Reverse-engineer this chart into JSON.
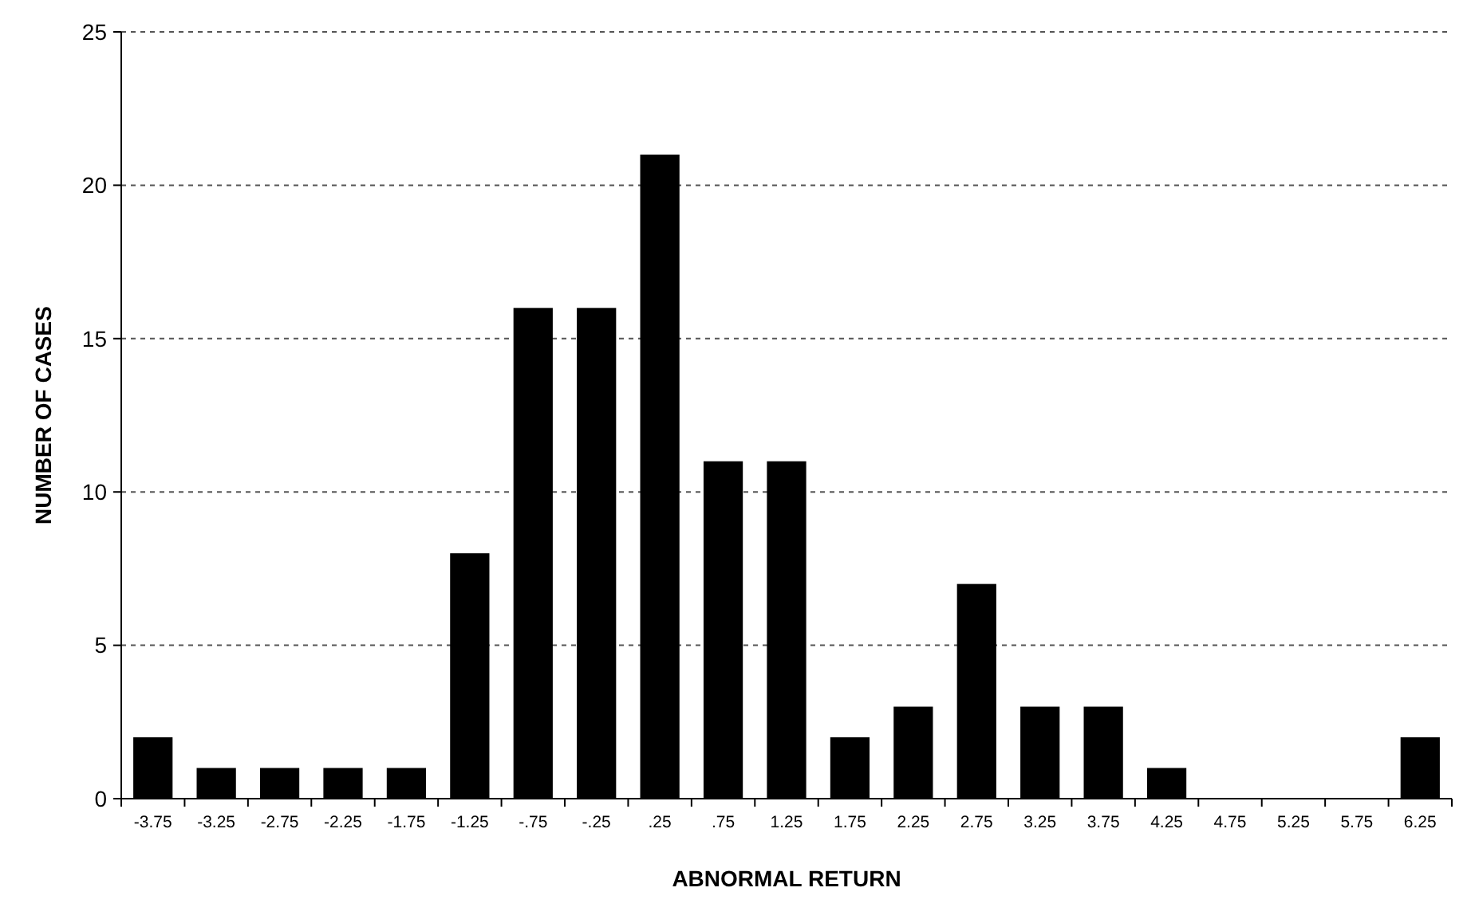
{
  "chart_data": {
    "type": "bar",
    "xlabel": "ABNORMAL RETURN",
    "ylabel": "NUMBER OF CASES",
    "categories": [
      "-3.75",
      "-3.25",
      "-2.75",
      "-2.25",
      "-1.75",
      "-1.25",
      "-.75",
      "-.25",
      ".25",
      ".75",
      "1.25",
      "1.75",
      "2.25",
      "2.75",
      "3.25",
      "3.75",
      "4.25",
      "4.75",
      "5.25",
      "5.75",
      "6.25"
    ],
    "values": [
      2,
      1,
      1,
      1,
      1,
      8,
      16,
      16,
      21,
      11,
      11,
      2,
      3,
      7,
      3,
      3,
      1,
      0,
      0,
      0,
      2
    ],
    "color": "#000000",
    "ylim": [
      0,
      25
    ],
    "yticks": [
      0,
      5,
      10,
      15,
      20,
      25
    ],
    "grid": "y"
  }
}
